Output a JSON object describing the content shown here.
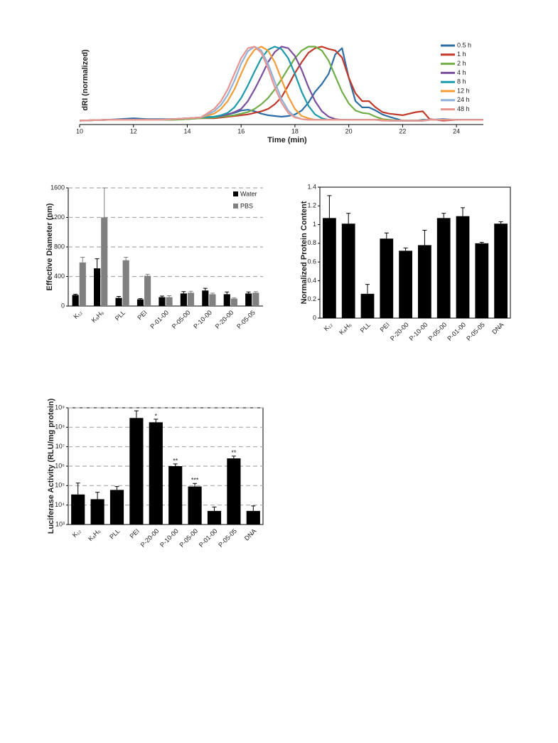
{
  "chart_data": [
    {
      "type": "line",
      "xlabel": "Time (min)",
      "ylabel": "dRI (normalized)",
      "x": [
        10,
        11,
        11.5,
        12,
        12.5,
        13,
        13.5,
        14,
        14.5,
        15,
        15.25,
        15.5,
        15.75,
        16,
        16.25,
        16.5,
        16.75,
        17,
        17.25,
        17.5,
        17.75,
        18,
        18.25,
        18.5,
        18.75,
        19,
        19.25,
        19.5,
        19.75,
        20,
        20.25,
        20.5,
        20.75,
        21,
        21.25,
        21.5,
        22,
        22.5,
        22.75,
        23,
        23.5,
        24,
        25
      ],
      "xlim": [
        10,
        25
      ],
      "xticks": [
        10,
        12,
        14,
        16,
        18,
        20,
        22,
        24
      ],
      "ylim": [
        0,
        1.05
      ],
      "legend": "right",
      "series": [
        {
          "name": "0.5 h",
          "color": "#2e6da4",
          "values": [
            0.05,
            0.06,
            0.07,
            0.08,
            0.07,
            0.07,
            0.07,
            0.08,
            0.09,
            0.1,
            0.11,
            0.13,
            0.15,
            0.18,
            0.19,
            0.17,
            0.14,
            0.12,
            0.11,
            0.1,
            0.11,
            0.13,
            0.18,
            0.28,
            0.42,
            0.52,
            0.65,
            0.9,
            0.98,
            0.6,
            0.3,
            0.22,
            0.22,
            0.18,
            0.13,
            0.1,
            0.05,
            0.05,
            0.06,
            0.06,
            0.07,
            0.06,
            0.06
          ]
        },
        {
          "name": "1 h",
          "color": "#c0392b",
          "values": [
            0.05,
            0.06,
            0.06,
            0.06,
            0.06,
            0.06,
            0.07,
            0.07,
            0.08,
            0.08,
            0.09,
            0.1,
            0.11,
            0.12,
            0.13,
            0.15,
            0.17,
            0.2,
            0.26,
            0.35,
            0.5,
            0.66,
            0.8,
            0.92,
            0.98,
            1.0,
            0.97,
            0.95,
            0.86,
            0.6,
            0.4,
            0.3,
            0.3,
            0.22,
            0.16,
            0.14,
            0.12,
            0.16,
            0.17,
            0.07,
            0.05,
            0.06,
            0.06
          ]
        },
        {
          "name": "2 h",
          "color": "#70ad47",
          "values": [
            0.05,
            0.06,
            0.06,
            0.06,
            0.06,
            0.06,
            0.06,
            0.07,
            0.08,
            0.09,
            0.1,
            0.11,
            0.12,
            0.14,
            0.16,
            0.2,
            0.26,
            0.34,
            0.45,
            0.58,
            0.72,
            0.85,
            0.95,
            1.0,
            1.0,
            0.95,
            0.82,
            0.62,
            0.42,
            0.27,
            0.18,
            0.15,
            0.14,
            0.1,
            0.07,
            0.06,
            0.05,
            0.05,
            0.05,
            0.06,
            0.06,
            0.06,
            0.06
          ]
        },
        {
          "name": "4 h",
          "color": "#7b4f9d",
          "values": [
            0.05,
            0.06,
            0.06,
            0.06,
            0.06,
            0.06,
            0.07,
            0.08,
            0.09,
            0.1,
            0.11,
            0.13,
            0.16,
            0.2,
            0.3,
            0.45,
            0.62,
            0.8,
            0.93,
            1.0,
            0.98,
            0.88,
            0.7,
            0.48,
            0.3,
            0.17,
            0.1,
            0.07,
            0.06,
            0.06,
            0.06,
            0.06,
            0.06,
            0.06,
            0.06,
            0.05,
            0.05,
            0.05,
            0.05,
            0.06,
            0.06,
            0.06,
            0.06
          ]
        },
        {
          "name": "8 h",
          "color": "#1b9aaa",
          "values": [
            0.05,
            0.06,
            0.06,
            0.06,
            0.06,
            0.06,
            0.07,
            0.08,
            0.09,
            0.1,
            0.12,
            0.15,
            0.22,
            0.34,
            0.5,
            0.68,
            0.85,
            0.96,
            1.0,
            0.97,
            0.85,
            0.65,
            0.42,
            0.24,
            0.13,
            0.08,
            0.06,
            0.06,
            0.06,
            0.06,
            0.06,
            0.06,
            0.06,
            0.06,
            0.06,
            0.05,
            0.05,
            0.05,
            0.05,
            0.06,
            0.06,
            0.06,
            0.06
          ]
        },
        {
          "name": "12 h",
          "color": "#f39c35",
          "values": [
            0.05,
            0.06,
            0.06,
            0.06,
            0.06,
            0.06,
            0.07,
            0.08,
            0.09,
            0.14,
            0.2,
            0.3,
            0.45,
            0.65,
            0.84,
            0.96,
            1.0,
            0.95,
            0.8,
            0.58,
            0.36,
            0.2,
            0.11,
            0.08,
            0.06,
            0.06,
            0.06,
            0.06,
            0.06,
            0.06,
            0.06,
            0.06,
            0.06,
            0.06,
            0.06,
            0.05,
            0.05,
            0.05,
            0.05,
            0.06,
            0.06,
            0.06,
            0.06
          ]
        },
        {
          "name": "24 h",
          "color": "#8fb3d9",
          "values": [
            0.05,
            0.06,
            0.06,
            0.06,
            0.06,
            0.06,
            0.07,
            0.08,
            0.09,
            0.17,
            0.25,
            0.38,
            0.56,
            0.78,
            0.94,
            1.0,
            0.95,
            0.78,
            0.55,
            0.33,
            0.18,
            0.1,
            0.07,
            0.06,
            0.06,
            0.06,
            0.06,
            0.06,
            0.06,
            0.06,
            0.06,
            0.06,
            0.06,
            0.06,
            0.05,
            0.05,
            0.05,
            0.05,
            0.05,
            0.06,
            0.06,
            0.06,
            0.06
          ]
        },
        {
          "name": "48 h",
          "color": "#e8948f",
          "values": [
            0.05,
            0.06,
            0.06,
            0.06,
            0.06,
            0.06,
            0.07,
            0.08,
            0.09,
            0.2,
            0.3,
            0.45,
            0.65,
            0.85,
            0.98,
            1.0,
            0.92,
            0.72,
            0.48,
            0.28,
            0.15,
            0.09,
            0.07,
            0.06,
            0.06,
            0.06,
            0.06,
            0.06,
            0.06,
            0.06,
            0.06,
            0.06,
            0.06,
            0.06,
            0.05,
            0.05,
            0.05,
            0.05,
            0.05,
            0.06,
            0.06,
            0.06,
            0.06
          ]
        }
      ]
    },
    {
      "type": "bar",
      "ylabel": "Effective Diameter (nm)",
      "categories": [
        "K₁₂",
        "K₈H₆",
        "PLL",
        "PEI",
        "P-01-00",
        "P-05-00",
        "P-10-00",
        "P-20-00",
        "P-05-05"
      ],
      "ylim": [
        0,
        1600
      ],
      "yticks": [
        0,
        400,
        800,
        1200,
        1600
      ],
      "grid": true,
      "legend": "top-right",
      "series": [
        {
          "name": "Water",
          "color": "#000000",
          "values": [
            150,
            510,
            110,
            90,
            120,
            170,
            210,
            160,
            170
          ],
          "errors": [
            10,
            130,
            20,
            10,
            15,
            25,
            30,
            30,
            20
          ]
        },
        {
          "name": "PBS",
          "color": "#808080",
          "values": [
            590,
            1200,
            620,
            410,
            120,
            180,
            160,
            100,
            180
          ],
          "errors": [
            70,
            400,
            40,
            20,
            20,
            20,
            15,
            10,
            15
          ]
        }
      ]
    },
    {
      "type": "bar",
      "ylabel": "Normalized Protein Content",
      "categories": [
        "K₁₂",
        "K₈H₆",
        "PLL",
        "PEI",
        "P-20-00",
        "P-10-00",
        "P-05-00",
        "P-01-00",
        "P-05-05",
        "DNA"
      ],
      "ylim": [
        0,
        1.4
      ],
      "yticks": [
        0,
        0.2,
        0.4,
        0.6,
        0.8,
        1,
        1.2,
        1.4
      ],
      "grid": false,
      "frame": true,
      "series": [
        {
          "name": null,
          "color": "#000000",
          "values": [
            1.07,
            1.01,
            0.26,
            0.85,
            0.72,
            0.78,
            1.07,
            1.09,
            0.8,
            1.01
          ],
          "errors": [
            0.24,
            0.11,
            0.1,
            0.06,
            0.03,
            0.16,
            0.05,
            0.09,
            0.01,
            0.02
          ]
        }
      ]
    },
    {
      "type": "bar",
      "ylabel": "Luciferase Activity (RLU/mg protein)",
      "categories": [
        "K₁₂",
        "K₈H₆",
        "PLL",
        "PEI",
        "P-20-00",
        "P-10-00",
        "P-05-00",
        "P-01-00",
        "P-05-05",
        "DNA"
      ],
      "log_scale": true,
      "ylim": [
        1000,
        1000000000
      ],
      "grid": true,
      "frame": true,
      "yticks": [
        {
          "value": 1000,
          "label": "10³"
        },
        {
          "value": 10000,
          "label": "10⁴"
        },
        {
          "value": 100000,
          "label": "10⁵"
        },
        {
          "value": 1000000,
          "label": "10⁶"
        },
        {
          "value": 10000000,
          "label": "10⁷"
        },
        {
          "value": 100000000,
          "label": "10⁸"
        },
        {
          "value": 1000000000,
          "label": "10⁹"
        }
      ],
      "series": [
        {
          "name": null,
          "color": "#000000",
          "values": [
            35000,
            20000,
            60000,
            300000000,
            180000000,
            1000000,
            90000,
            5000,
            2500000,
            5000
          ],
          "errors": [
            100000,
            25000,
            30000,
            400000000,
            80000000,
            300000,
            40000,
            3000,
            800000,
            4000
          ]
        }
      ],
      "annotations": [
        {
          "category": "P-20-00",
          "text": "*"
        },
        {
          "category": "P-10-00",
          "text": "**"
        },
        {
          "category": "P-05-00",
          "text": "***"
        },
        {
          "category": "P-05-05",
          "text": "**"
        }
      ]
    }
  ]
}
